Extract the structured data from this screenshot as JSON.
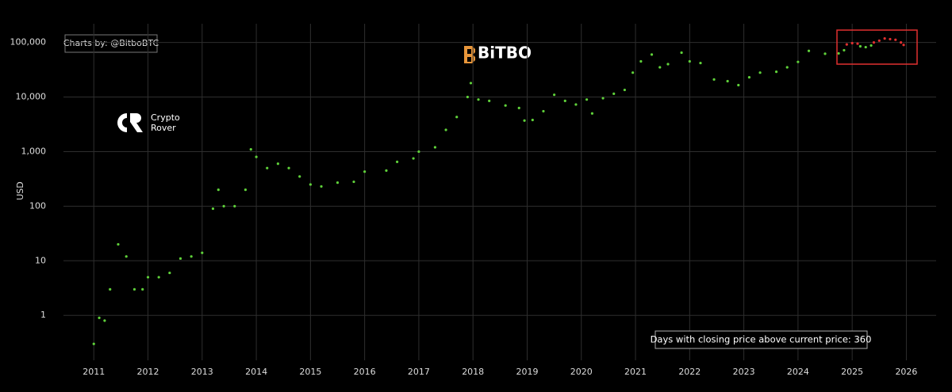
{
  "chart_data": {
    "type": "scatter",
    "y_label": "USD",
    "annotations": [
      "Charts by: @BitboBTC",
      "Days with closing price above current price: 360"
    ],
    "watermarks": [
      "BiTBO",
      "Crypto",
      "Rover"
    ],
    "log_y": true,
    "grid": true,
    "xlim": [
      2010.44,
      2026.55
    ],
    "xticks": [
      2011,
      2012,
      2013,
      2014,
      2015,
      2016,
      2017,
      2018,
      2019,
      2020,
      2021,
      2022,
      2023,
      2024,
      2025,
      2026
    ],
    "ylim": [
      0.15,
      220000
    ],
    "yticks": [
      1,
      10,
      100,
      {
        "value": 1000,
        "label": "1,000"
      },
      {
        "value": 10000,
        "label": "10,000"
      },
      {
        "value": 100000,
        "label": "100,000"
      }
    ],
    "series": [
      {
        "color": "#5fd13a",
        "x": [
          2011.0,
          2011.1,
          2011.2,
          2011.3,
          2011.45,
          2011.6,
          2011.75,
          2011.9,
          2012.0,
          2012.2,
          2012.4,
          2012.6,
          2012.8,
          2013.0,
          2013.2,
          2013.3,
          2013.4,
          2013.6,
          2013.8,
          2013.9,
          2014.0,
          2014.2,
          2014.4,
          2014.6,
          2014.8,
          2015.0,
          2015.2,
          2015.5,
          2015.8,
          2016.0,
          2016.4,
          2016.6,
          2016.9,
          2017.0,
          2017.3,
          2017.5,
          2017.7,
          2017.9,
          2017.96,
          2018.1,
          2018.3,
          2018.6,
          2018.85,
          2018.95,
          2019.1,
          2019.3,
          2019.5,
          2019.7,
          2019.9,
          2020.1,
          2020.2,
          2020.4,
          2020.6,
          2020.8,
          2020.95,
          2021.1,
          2021.3,
          2021.45,
          2021.6,
          2021.85,
          2022.0,
          2022.2,
          2022.45,
          2022.7,
          2022.9,
          2023.1,
          2023.3,
          2023.6,
          2023.8,
          2024.0,
          2024.2,
          2024.5,
          2024.75,
          2024.85,
          2025.15,
          2025.25,
          2025.35
        ],
        "values": [
          0.3,
          0.9,
          0.8,
          3,
          20,
          12,
          3,
          3,
          5,
          5,
          6,
          11,
          12,
          14,
          90,
          200,
          100,
          100,
          200,
          1100,
          800,
          500,
          600,
          500,
          350,
          250,
          230,
          270,
          280,
          430,
          450,
          650,
          750,
          1000,
          1200,
          2500,
          4300,
          10000,
          18000,
          9000,
          8500,
          7000,
          6300,
          3700,
          3800,
          5500,
          11000,
          8500,
          7300,
          9000,
          5000,
          9500,
          11500,
          13500,
          28000,
          45000,
          60000,
          35000,
          40000,
          65000,
          45000,
          42000,
          21000,
          19500,
          16500,
          23000,
          28000,
          29000,
          35000,
          44000,
          70000,
          62000,
          63000,
          72000,
          85000,
          82000,
          88000
        ]
      },
      {
        "color": "#e03030",
        "x": [
          2024.9,
          2025.0,
          2025.1,
          2025.4,
          2025.5,
          2025.6,
          2025.7,
          2025.8,
          2025.9,
          2025.95
        ],
        "values": [
          92000,
          97000,
          95000,
          100000,
          108000,
          118000,
          115000,
          112000,
          100000,
          90000
        ]
      }
    ]
  }
}
